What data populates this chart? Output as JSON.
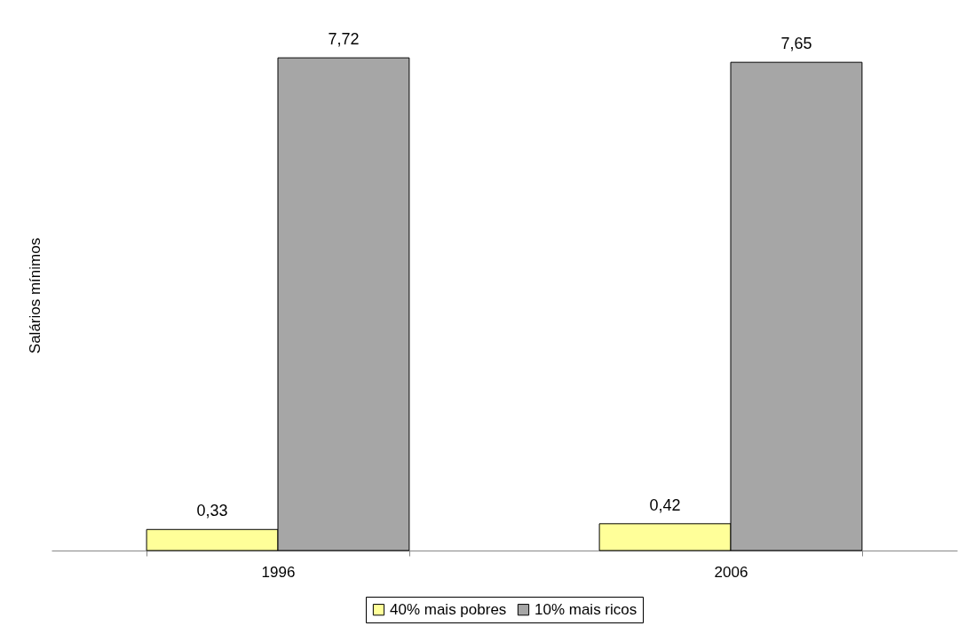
{
  "chart_data": {
    "type": "bar",
    "ylabel": "Salários mínimos",
    "categories": [
      "1996",
      "2006"
    ],
    "series": [
      {
        "name": "40% mais pobres",
        "color": "#ffff99",
        "values": [
          0.33,
          0.42
        ],
        "value_labels": [
          "0,33",
          "0,42"
        ]
      },
      {
        "name": "10% mais ricos",
        "color": "#a6a6a6",
        "values": [
          7.72,
          7.65
        ],
        "value_labels": [
          "7,72",
          "7,65"
        ]
      }
    ],
    "legend": "bottom",
    "grid": false
  }
}
